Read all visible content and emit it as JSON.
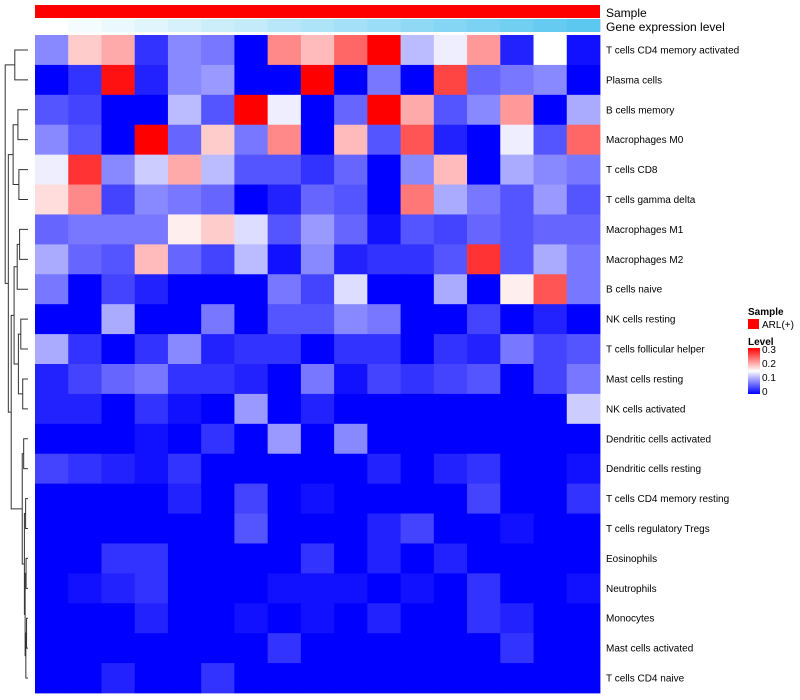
{
  "chart_data": {
    "type": "heatmap",
    "rows": [
      "T cells CD4 memory activated",
      "Plasma cells",
      "B cells memory",
      "Macrophages M0",
      "T cells CD8",
      "T cells gamma delta",
      "Macrophages M1",
      "Macrophages M2",
      "B cells naive",
      "NK cells resting",
      "T cells follicular helper",
      "Mast cells resting",
      "NK cells activated",
      "Dendritic cells activated",
      "Dendritic cells resting",
      "T cells CD4 memory resting",
      "T cells regulatory  Tregs",
      "Eosinophils",
      "Neutrophils",
      "Monocytes",
      "Mast cells activated",
      "T cells CD4 naive"
    ],
    "values": [
      [
        0.08,
        0.18,
        0.2,
        0.03,
        0.08,
        0.07,
        0.0,
        0.22,
        0.19,
        0.24,
        0.3,
        0.11,
        0.14,
        0.21,
        0.02,
        0.15,
        0.01
      ],
      [
        0.0,
        0.03,
        0.29,
        0.02,
        0.08,
        0.09,
        0.0,
        0.0,
        0.3,
        0.0,
        0.07,
        0.0,
        0.26,
        0.06,
        0.07,
        0.08,
        0.0
      ],
      [
        0.05,
        0.04,
        0.0,
        0.0,
        0.11,
        0.05,
        0.3,
        0.14,
        0.0,
        0.06,
        0.3,
        0.2,
        0.05,
        0.08,
        0.21,
        0.0,
        0.1
      ],
      [
        0.08,
        0.05,
        0.0,
        0.3,
        0.06,
        0.18,
        0.07,
        0.22,
        0.0,
        0.19,
        0.05,
        0.25,
        0.02,
        0.0,
        0.14,
        0.05,
        0.24
      ],
      [
        0.14,
        0.27,
        0.08,
        0.12,
        0.2,
        0.11,
        0.05,
        0.05,
        0.03,
        0.06,
        0.0,
        0.08,
        0.19,
        0.0,
        0.1,
        0.08,
        0.07
      ],
      [
        0.17,
        0.22,
        0.04,
        0.08,
        0.07,
        0.06,
        0.0,
        0.02,
        0.06,
        0.05,
        0.0,
        0.23,
        0.1,
        0.07,
        0.05,
        0.09,
        0.05
      ],
      [
        0.06,
        0.07,
        0.07,
        0.07,
        0.16,
        0.18,
        0.13,
        0.05,
        0.09,
        0.06,
        0.01,
        0.05,
        0.04,
        0.06,
        0.05,
        0.06,
        0.06
      ],
      [
        0.1,
        0.06,
        0.05,
        0.19,
        0.06,
        0.04,
        0.11,
        0.01,
        0.08,
        0.02,
        0.03,
        0.03,
        0.05,
        0.27,
        0.05,
        0.1,
        0.07
      ],
      [
        0.07,
        0.0,
        0.04,
        0.02,
        0.0,
        0.0,
        0.0,
        0.07,
        0.04,
        0.13,
        0.0,
        0.0,
        0.1,
        0.0,
        0.16,
        0.25,
        0.07
      ],
      [
        0.0,
        0.0,
        0.1,
        0.0,
        0.0,
        0.07,
        0.0,
        0.05,
        0.05,
        0.08,
        0.07,
        0.0,
        0.0,
        0.04,
        0.0,
        0.02,
        0.0
      ],
      [
        0.1,
        0.03,
        0.0,
        0.03,
        0.08,
        0.02,
        0.03,
        0.03,
        0.0,
        0.03,
        0.03,
        0.0,
        0.03,
        0.02,
        0.07,
        0.04,
        0.05
      ],
      [
        0.02,
        0.04,
        0.06,
        0.07,
        0.03,
        0.03,
        0.02,
        0.0,
        0.07,
        0.01,
        0.04,
        0.03,
        0.04,
        0.05,
        0.0,
        0.04,
        0.07
      ],
      [
        0.02,
        0.02,
        0.0,
        0.03,
        0.01,
        0.0,
        0.09,
        0.0,
        0.02,
        0.0,
        0.0,
        0.0,
        0.0,
        0.0,
        0.0,
        0.0,
        0.12
      ],
      [
        0.0,
        0.0,
        0.0,
        0.01,
        0.0,
        0.03,
        0.0,
        0.09,
        0.0,
        0.08,
        0.0,
        0.0,
        0.0,
        0.0,
        0.0,
        0.0,
        0.0
      ],
      [
        0.04,
        0.03,
        0.02,
        0.01,
        0.03,
        0.0,
        0.0,
        0.0,
        0.0,
        0.0,
        0.02,
        0.0,
        0.02,
        0.03,
        0.0,
        0.0,
        0.01
      ],
      [
        0.0,
        0.0,
        0.0,
        0.0,
        0.02,
        0.0,
        0.04,
        0.0,
        0.01,
        0.0,
        0.0,
        0.0,
        0.0,
        0.04,
        0.0,
        0.0,
        0.03
      ],
      [
        0.0,
        0.0,
        0.0,
        0.0,
        0.0,
        0.0,
        0.05,
        0.0,
        0.0,
        0.0,
        0.02,
        0.04,
        0.0,
        0.0,
        0.01,
        0.0,
        0.0
      ],
      [
        0.0,
        0.0,
        0.03,
        0.03,
        0.0,
        0.0,
        0.0,
        0.0,
        0.03,
        0.0,
        0.02,
        0.0,
        0.02,
        0.0,
        0.0,
        0.0,
        0.0
      ],
      [
        0.0,
        0.01,
        0.02,
        0.03,
        0.0,
        0.0,
        0.0,
        0.01,
        0.01,
        0.01,
        0.0,
        0.01,
        0.0,
        0.03,
        0.0,
        0.0,
        0.01
      ],
      [
        0.0,
        0.0,
        0.0,
        0.02,
        0.0,
        0.0,
        0.01,
        0.0,
        0.01,
        0.0,
        0.02,
        0.0,
        0.0,
        0.03,
        0.02,
        0.0,
        0.0
      ],
      [
        0.0,
        0.0,
        0.0,
        0.0,
        0.0,
        0.0,
        0.0,
        0.03,
        0.0,
        0.0,
        0.0,
        0.0,
        0.0,
        0.0,
        0.03,
        0.0,
        0.0
      ],
      [
        0.0,
        0.0,
        0.02,
        0.0,
        0.0,
        0.03,
        0.0,
        0.0,
        0.0,
        0.0,
        0.0,
        0.0,
        0.0,
        0.0,
        0.0,
        0.0,
        0.0
      ]
    ],
    "color_scale": {
      "low": "#0000ff",
      "mid": "#ffffff",
      "high": "#ff0000",
      "min": 0,
      "mid_value": 0.15,
      "max": 0.3
    },
    "annotations": {
      "sample": {
        "label": "Sample",
        "color": "#ff0000"
      },
      "gene_expression": {
        "label": "Gene expression level",
        "values": [
          0.0,
          0.06,
          0.12,
          0.19,
          0.25,
          0.31,
          0.37,
          0.44,
          0.5,
          0.56,
          0.62,
          0.69,
          0.75,
          0.81,
          0.87,
          0.94,
          1.0
        ],
        "low_color": "#ffffff",
        "high_color": "#5cc8f0"
      }
    },
    "legend": {
      "placement": "right",
      "sample_title": "Sample",
      "sample_entry": "ARL(+)",
      "level_title": "Level",
      "level_ticks": [
        "0.3",
        "0.2",
        "0.1",
        "0"
      ]
    },
    "row_dendrogram": true
  }
}
